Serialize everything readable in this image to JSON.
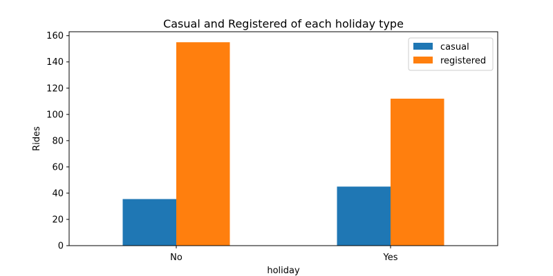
{
  "chart_data": {
    "type": "bar",
    "title": "Casual and Registered of each holiday type",
    "xlabel": "holiday",
    "ylabel": "Rides",
    "categories": [
      "No",
      "Yes"
    ],
    "series": [
      {
        "name": "casual",
        "values": [
          35.5,
          45
        ],
        "color": "#1f77b4"
      },
      {
        "name": "registered",
        "values": [
          155,
          112
        ],
        "color": "#ff7f0e"
      }
    ],
    "ylim": [
      0,
      163
    ],
    "yticks": [
      0,
      20,
      40,
      60,
      80,
      100,
      120,
      140,
      160
    ],
    "legend_position": "top-right",
    "grid": false
  }
}
